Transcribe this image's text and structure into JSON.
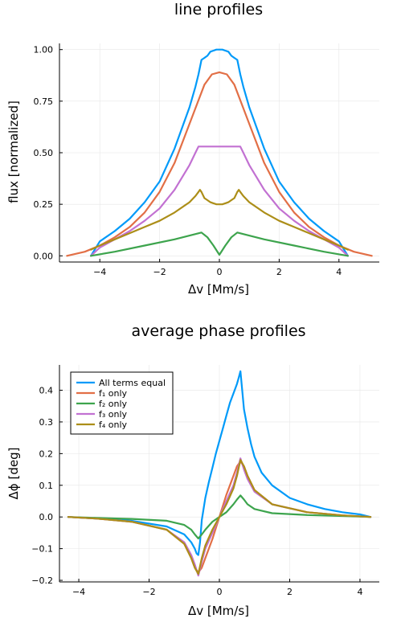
{
  "chart_data": [
    {
      "type": "line",
      "title": "line profiles",
      "xlabel": "Δv [Mm/s]",
      "ylabel": "flux [normalized]",
      "xlim": [
        -5.35,
        5.35
      ],
      "ylim": [
        -0.03,
        1.03
      ],
      "xticks": [
        -4,
        -2,
        0,
        2,
        4
      ],
      "xtick_labels": [
        "−4",
        "−2",
        "0",
        "2",
        "4"
      ],
      "yticks": [
        0,
        0.25,
        0.5,
        0.75,
        1.0
      ],
      "ytick_labels": [
        "0.00",
        "0.25",
        "0.50",
        "0.75",
        "1.00"
      ],
      "grid": true,
      "legend": false,
      "series": [
        {
          "color": "#009af9",
          "x": [
            -4.3,
            -4.0,
            -3.5,
            -3.0,
            -2.5,
            -2.0,
            -1.5,
            -1.0,
            -0.8,
            -0.7,
            -0.6,
            -0.5,
            -0.4,
            -0.3,
            -0.2,
            -0.1,
            0,
            0.1,
            0.2,
            0.3,
            0.4,
            0.5,
            0.6,
            0.7,
            0.8,
            1.0,
            1.5,
            2.0,
            2.5,
            3.0,
            3.5,
            4.0,
            4.3
          ],
          "y": [
            0.0,
            0.07,
            0.12,
            0.18,
            0.26,
            0.36,
            0.52,
            0.72,
            0.82,
            0.88,
            0.95,
            0.96,
            0.97,
            0.99,
            0.995,
            1.0,
            1.0,
            1.0,
            0.995,
            0.99,
            0.97,
            0.96,
            0.95,
            0.88,
            0.82,
            0.72,
            0.52,
            0.36,
            0.26,
            0.18,
            0.12,
            0.07,
            0.0
          ]
        },
        {
          "color": "#e26f46",
          "x": [
            -5.1,
            -4.5,
            -4.0,
            -3.5,
            -3.0,
            -2.5,
            -2.0,
            -1.5,
            -1.0,
            -0.5,
            -0.25,
            0,
            0.25,
            0.5,
            1.0,
            1.5,
            2.0,
            2.5,
            3.0,
            3.5,
            4.0,
            4.5,
            5.1
          ],
          "y": [
            0.0,
            0.02,
            0.05,
            0.09,
            0.14,
            0.21,
            0.31,
            0.45,
            0.64,
            0.83,
            0.88,
            0.89,
            0.88,
            0.83,
            0.64,
            0.45,
            0.31,
            0.21,
            0.14,
            0.09,
            0.05,
            0.02,
            0.0
          ]
        },
        {
          "color": "#c271d2",
          "x": [
            -4.3,
            -4.0,
            -3.5,
            -3.0,
            -2.5,
            -2.0,
            -1.5,
            -1.0,
            -0.8,
            -0.7,
            -0.6,
            -0.3,
            0,
            0.3,
            0.6,
            0.7,
            0.8,
            1.0,
            1.5,
            2.0,
            2.5,
            3.0,
            3.5,
            4.0,
            4.3
          ],
          "y": [
            0.0,
            0.04,
            0.08,
            0.12,
            0.17,
            0.23,
            0.32,
            0.44,
            0.5,
            0.53,
            0.53,
            0.53,
            0.53,
            0.53,
            0.53,
            0.53,
            0.5,
            0.44,
            0.32,
            0.23,
            0.17,
            0.12,
            0.08,
            0.04,
            0.0
          ]
        },
        {
          "color": "#ac8e18",
          "x": [
            -4.3,
            -4.0,
            -3.5,
            -3.0,
            -2.5,
            -2.0,
            -1.5,
            -1.0,
            -0.8,
            -0.7,
            -0.65,
            -0.6,
            -0.5,
            -0.4,
            -0.3,
            -0.2,
            -0.1,
            0,
            0.1,
            0.2,
            0.3,
            0.4,
            0.5,
            0.6,
            0.65,
            0.7,
            0.8,
            1.0,
            1.5,
            2.0,
            2.5,
            3.0,
            3.5,
            4.0,
            4.3
          ],
          "y": [
            0.03,
            0.05,
            0.08,
            0.11,
            0.14,
            0.17,
            0.21,
            0.26,
            0.29,
            0.31,
            0.32,
            0.31,
            0.28,
            0.27,
            0.26,
            0.255,
            0.25,
            0.25,
            0.25,
            0.255,
            0.26,
            0.27,
            0.28,
            0.31,
            0.32,
            0.31,
            0.29,
            0.26,
            0.21,
            0.17,
            0.14,
            0.11,
            0.08,
            0.05,
            0.03
          ]
        },
        {
          "color": "#3da44d",
          "x": [
            -4.3,
            -3.5,
            -2.5,
            -1.5,
            -0.6,
            -0.4,
            -0.2,
            0,
            0.2,
            0.4,
            0.6,
            1.5,
            2.5,
            3.5,
            4.3
          ],
          "y": [
            0.0,
            0.02,
            0.05,
            0.08,
            0.113,
            0.09,
            0.05,
            0.005,
            0.05,
            0.09,
            0.113,
            0.08,
            0.05,
            0.02,
            0.0
          ]
        }
      ]
    },
    {
      "type": "line",
      "title": "average phase profiles",
      "xlabel": "Δv [Mm/s]",
      "ylabel": "Δϕ [deg]",
      "xlim": [
        -4.55,
        4.55
      ],
      "ylim": [
        -0.205,
        0.48
      ],
      "xticks": [
        -4,
        -2,
        0,
        2,
        4
      ],
      "xtick_labels": [
        "−4",
        "−2",
        "0",
        "2",
        "4"
      ],
      "yticks": [
        -0.2,
        -0.1,
        0,
        0.1,
        0.2,
        0.3,
        0.4
      ],
      "ytick_labels": [
        "−0.2",
        "−0.1",
        "0.0",
        "0.1",
        "0.2",
        "0.3",
        "0.4"
      ],
      "grid": true,
      "legend": "top-left",
      "series": [
        {
          "name": "All terms equal",
          "color": "#009af9",
          "x": [
            -4.3,
            -3.5,
            -2.5,
            -1.5,
            -1.0,
            -0.8,
            -0.7,
            -0.65,
            -0.6,
            -0.55,
            -0.5,
            -0.4,
            -0.3,
            -0.2,
            -0.1,
            0,
            0.1,
            0.2,
            0.3,
            0.4,
            0.5,
            0.55,
            0.6,
            0.65,
            0.7,
            0.8,
            0.9,
            1.0,
            1.2,
            1.5,
            2.0,
            2.5,
            3.0,
            3.5,
            4.0,
            4.3
          ],
          "y": [
            0.0,
            -0.005,
            -0.012,
            -0.03,
            -0.055,
            -0.08,
            -0.1,
            -0.115,
            -0.12,
            -0.08,
            -0.01,
            0.06,
            0.11,
            0.155,
            0.2,
            0.24,
            0.28,
            0.32,
            0.36,
            0.39,
            0.42,
            0.44,
            0.46,
            0.4,
            0.34,
            0.28,
            0.23,
            0.19,
            0.14,
            0.1,
            0.06,
            0.04,
            0.025,
            0.015,
            0.008,
            0.0
          ]
        },
        {
          "name": "f₁ only",
          "color": "#e26f46",
          "x": [
            -4.3,
            -3.5,
            -2.5,
            -1.5,
            -1.0,
            -0.8,
            -0.7,
            -0.6,
            -0.5,
            -0.4,
            -0.2,
            0,
            0.2,
            0.4,
            0.5,
            0.6,
            0.7,
            0.8,
            1.0,
            1.5,
            2.5,
            3.5,
            4.3
          ],
          "y": [
            0.0,
            -0.005,
            -0.015,
            -0.04,
            -0.085,
            -0.13,
            -0.16,
            -0.175,
            -0.16,
            -0.13,
            -0.07,
            0.0,
            0.07,
            0.13,
            0.16,
            0.175,
            0.16,
            0.13,
            0.085,
            0.04,
            0.015,
            0.005,
            0.0
          ]
        },
        {
          "name": "f₂ only",
          "color": "#3da44d",
          "x": [
            -4.3,
            -3.5,
            -2.5,
            -1.5,
            -1.0,
            -0.8,
            -0.7,
            -0.6,
            -0.5,
            -0.4,
            -0.2,
            0,
            0.2,
            0.4,
            0.5,
            0.6,
            0.7,
            0.8,
            1.0,
            1.5,
            2.5,
            3.5,
            4.3
          ],
          "y": [
            0.0,
            -0.003,
            -0.006,
            -0.012,
            -0.025,
            -0.04,
            -0.055,
            -0.068,
            -0.055,
            -0.04,
            -0.015,
            0.0,
            0.015,
            0.04,
            0.055,
            0.068,
            0.055,
            0.04,
            0.025,
            0.012,
            0.006,
            0.003,
            0.0
          ]
        },
        {
          "name": "f₃ only",
          "color": "#c271d2",
          "x": [
            -4.3,
            -3.5,
            -2.5,
            -1.5,
            -1.0,
            -0.8,
            -0.7,
            -0.6,
            -0.5,
            -0.4,
            -0.2,
            0,
            0.2,
            0.4,
            0.5,
            0.6,
            0.7,
            0.8,
            1.0,
            1.5,
            2.5,
            3.5,
            4.3
          ],
          "y": [
            0.0,
            -0.005,
            -0.015,
            -0.04,
            -0.08,
            -0.12,
            -0.15,
            -0.185,
            -0.14,
            -0.1,
            -0.05,
            0.0,
            0.05,
            0.1,
            0.14,
            0.185,
            0.15,
            0.12,
            0.08,
            0.04,
            0.015,
            0.005,
            0.0
          ]
        },
        {
          "name": "f₄ only",
          "color": "#ac8e18",
          "x": [
            -4.3,
            -3.5,
            -2.5,
            -1.5,
            -1.0,
            -0.8,
            -0.7,
            -0.6,
            -0.5,
            -0.4,
            -0.2,
            0,
            0.2,
            0.4,
            0.5,
            0.6,
            0.7,
            0.8,
            1.0,
            1.5,
            2.5,
            3.5,
            4.3
          ],
          "y": [
            0.0,
            -0.005,
            -0.015,
            -0.04,
            -0.085,
            -0.13,
            -0.16,
            -0.18,
            -0.13,
            -0.09,
            -0.04,
            0.0,
            0.04,
            0.09,
            0.13,
            0.18,
            0.16,
            0.13,
            0.085,
            0.04,
            0.015,
            0.005,
            0.0
          ]
        }
      ]
    }
  ]
}
